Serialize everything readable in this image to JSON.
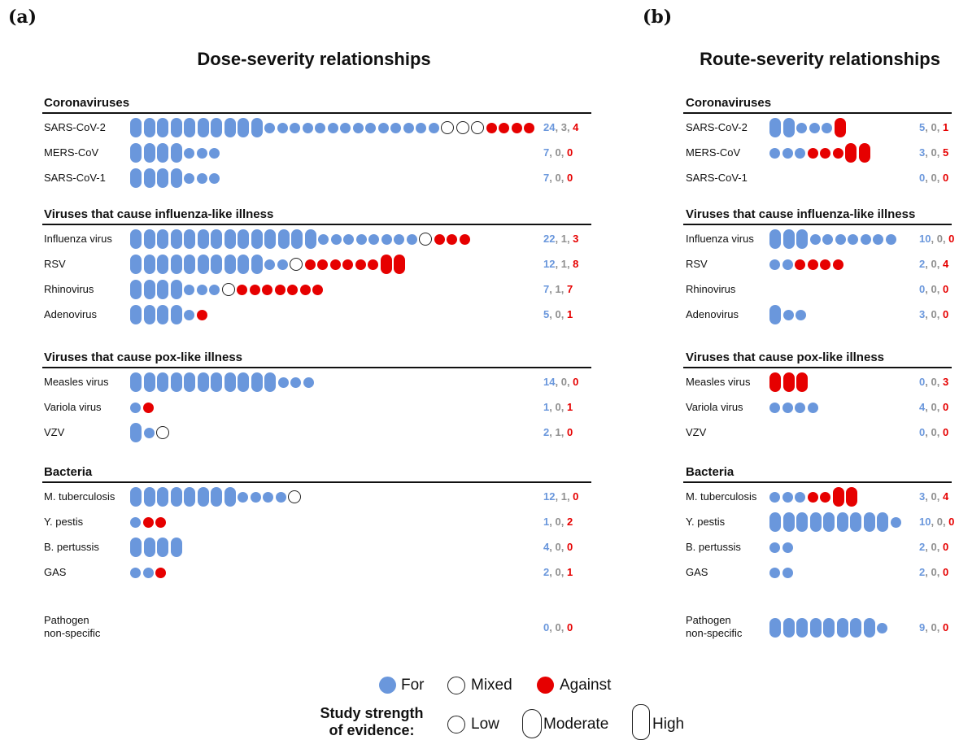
{
  "legend": {
    "for_label": "For",
    "mixed_label": "Mixed",
    "against_label": "Against",
    "strength_title_line1": "Study strength",
    "strength_title_line2": "of evidence:",
    "low_label": "Low",
    "moderate_label": "Moderate",
    "high_label": "High"
  },
  "colors": {
    "for": "#6a97dc",
    "mixed": "#ffffff",
    "against": "#e60000"
  },
  "chart_data": [
    {
      "type": "table",
      "panel": "(a)",
      "title": "Dose-severity relationships",
      "groups": [
        {
          "name": "Coronaviruses",
          "rows": [
            {
              "label": "SARS-CoV-2",
              "counts": [
                24,
                3,
                4
              ],
              "marks": "HHHHHHHHHHLLLLLLLLLLLLLLmmmaaaa"
            },
            {
              "label": "MERS-CoV",
              "counts": [
                7,
                0,
                0
              ],
              "marks": "HHHHLLL"
            },
            {
              "label": "SARS-CoV-1",
              "counts": [
                7,
                0,
                0
              ],
              "marks": "HHHHLLL"
            }
          ]
        },
        {
          "name": "Viruses that cause influenza-like illness",
          "rows": [
            {
              "label": "Influenza virus",
              "counts": [
                22,
                1,
                3
              ],
              "marks": "HHHHHHHHHHHHHHLLLLLLLLmaaa"
            },
            {
              "label": "RSV",
              "counts": [
                12,
                1,
                8
              ],
              "marks": "HHHHHHHHHHLLmaaaaaaAA"
            },
            {
              "label": "Rhinovirus",
              "counts": [
                7,
                1,
                7
              ],
              "marks": "HHHHLLLmaaaaaaa"
            },
            {
              "label": "Adenovirus",
              "counts": [
                5,
                0,
                1
              ],
              "marks": "HHHHLa"
            }
          ]
        },
        {
          "name": "Viruses that cause pox-like illness",
          "rows": [
            {
              "label": "Measles virus",
              "counts": [
                14,
                0,
                0
              ],
              "marks": "HHHHHHHHHHHLLL"
            },
            {
              "label": "Variola virus",
              "counts": [
                1,
                0,
                1
              ],
              "marks": "La"
            },
            {
              "label": "VZV",
              "counts": [
                2,
                1,
                0
              ],
              "marks": "HLm"
            }
          ]
        },
        {
          "name": "Bacteria",
          "rows": [
            {
              "label": "M. tuberculosis",
              "counts": [
                12,
                1,
                0
              ],
              "marks": "HHHHHHHHLLLLm"
            },
            {
              "label": "Y. pestis",
              "counts": [
                1,
                0,
                2
              ],
              "marks": "Laa"
            },
            {
              "label": "B. pertussis",
              "counts": [
                4,
                0,
                0
              ],
              "marks": "HHHH"
            },
            {
              "label": "GAS",
              "counts": [
                2,
                0,
                1
              ],
              "marks": "LLa"
            }
          ]
        },
        {
          "name": "",
          "rows": [
            {
              "label": "Pathogen\nnon-specific",
              "counts": [
                0,
                0,
                0
              ],
              "marks": ""
            }
          ]
        }
      ]
    },
    {
      "type": "table",
      "panel": "(b)",
      "title": "Route-severity relationships",
      "groups": [
        {
          "name": "Coronaviruses",
          "rows": [
            {
              "label": "SARS-CoV-2",
              "counts": [
                5,
                0,
                1
              ],
              "marks": "HHLLLA"
            },
            {
              "label": "MERS-CoV",
              "counts": [
                3,
                0,
                5
              ],
              "marks": "LLLaaaAA"
            },
            {
              "label": "SARS-CoV-1",
              "counts": [
                0,
                0,
                0
              ],
              "marks": ""
            }
          ]
        },
        {
          "name": "Viruses that cause influenza-like illness",
          "rows": [
            {
              "label": "Influenza virus",
              "counts": [
                10,
                0,
                0
              ],
              "marks": "HHHLLLLLLL"
            },
            {
              "label": "RSV",
              "counts": [
                2,
                0,
                4
              ],
              "marks": "LLaaaa"
            },
            {
              "label": "Rhinovirus",
              "counts": [
                0,
                0,
                0
              ],
              "marks": ""
            },
            {
              "label": "Adenovirus",
              "counts": [
                3,
                0,
                0
              ],
              "marks": "HLL"
            }
          ]
        },
        {
          "name": "Viruses that cause pox-like illness",
          "rows": [
            {
              "label": "Measles virus",
              "counts": [
                0,
                0,
                3
              ],
              "marks": "AAA"
            },
            {
              "label": "Variola virus",
              "counts": [
                4,
                0,
                0
              ],
              "marks": "LLLL"
            },
            {
              "label": "VZV",
              "counts": [
                0,
                0,
                0
              ],
              "marks": ""
            }
          ]
        },
        {
          "name": "Bacteria",
          "rows": [
            {
              "label": "M. tuberculosis",
              "counts": [
                3,
                0,
                4
              ],
              "marks": "LLLaaAA"
            },
            {
              "label": "Y. pestis",
              "counts": [
                10,
                0,
                0
              ],
              "marks": "HHHHHHHHHL"
            },
            {
              "label": "B. pertussis",
              "counts": [
                2,
                0,
                0
              ],
              "marks": "LL"
            },
            {
              "label": "GAS",
              "counts": [
                2,
                0,
                0
              ],
              "marks": "LL"
            }
          ]
        },
        {
          "name": "",
          "rows": [
            {
              "label": "Pathogen\nnon-specific",
              "counts": [
                9,
                0,
                0
              ],
              "marks": "HHHHHHHHL"
            }
          ]
        }
      ]
    }
  ]
}
